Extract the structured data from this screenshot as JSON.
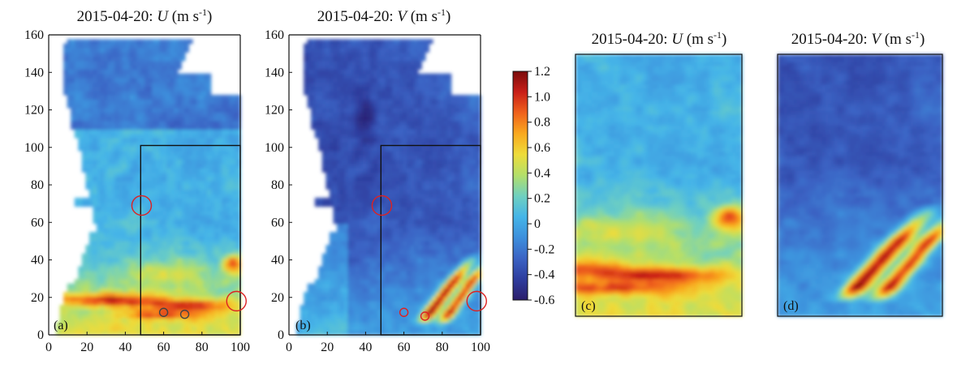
{
  "chart_data": [
    {
      "type": "heatmap",
      "panel_label": "(a)",
      "title": "2015-04-20: U (m s⁻¹)",
      "title_date": "2015-04-20: ",
      "title_var": "U",
      "title_unit": " (m s",
      "title_exp": "-1",
      "title_close": ")",
      "xlim": [
        0,
        100
      ],
      "ylim": [
        0,
        160
      ],
      "xticks": [
        "0",
        "20",
        "40",
        "60",
        "80",
        "100"
      ],
      "yticks": [
        "0",
        "20",
        "40",
        "60",
        "80",
        "100",
        "120",
        "140",
        "160"
      ],
      "subregion_box": {
        "x": [
          48,
          100
        ],
        "y": [
          0,
          101
        ]
      },
      "markers": [
        {
          "type": "circle",
          "x": 48.5,
          "y": 69,
          "color": "#d22"
        },
        {
          "type": "circle",
          "x": 98,
          "y": 18,
          "color": "#d22"
        },
        {
          "type": "circle",
          "x": 60,
          "y": 12,
          "color": "#444"
        },
        {
          "type": "circle",
          "x": 71,
          "y": 11,
          "color": "#444"
        }
      ]
    },
    {
      "type": "heatmap",
      "panel_label": "(b)",
      "title": "2015-04-20: V (m s⁻¹)",
      "title_date": "2015-04-20: ",
      "title_var": "V",
      "title_unit": " (m s",
      "title_exp": "-1",
      "title_close": ")",
      "xlim": [
        0,
        100
      ],
      "ylim": [
        0,
        160
      ],
      "xticks": [
        "0",
        "20",
        "40",
        "60",
        "80",
        "100"
      ],
      "yticks": [
        "0",
        "20",
        "40",
        "60",
        "80",
        "100",
        "120",
        "140",
        "160"
      ],
      "subregion_box": {
        "x": [
          48,
          100
        ],
        "y": [
          0,
          101
        ]
      },
      "markers": [
        {
          "type": "circle",
          "x": 48.5,
          "y": 69,
          "color": "#d22"
        },
        {
          "type": "circle",
          "x": 98,
          "y": 18,
          "color": "#d22"
        },
        {
          "type": "circle",
          "x": 60,
          "y": 12,
          "color": "#d22"
        },
        {
          "type": "circle",
          "x": 71,
          "y": 10,
          "color": "#d22"
        }
      ]
    },
    {
      "type": "heatmap",
      "panel_label": "(c)",
      "title": "2015-04-20: U (m s⁻¹)",
      "title_date": "2015-04-20: ",
      "title_var": "U",
      "title_unit": " (m s",
      "title_exp": "-1",
      "title_close": ")"
    },
    {
      "type": "heatmap",
      "panel_label": "(d)",
      "title": "2015-04-20: V (m s⁻¹)",
      "title_date": "2015-04-20: ",
      "title_var": "V",
      "title_unit": " (m s",
      "title_exp": "-1",
      "title_close": ")"
    }
  ],
  "colorbar": {
    "range": [
      -0.6,
      1.2
    ],
    "ticks": [
      "1.2",
      "1.0",
      "0.8",
      "0.6",
      "0.4",
      "0.2",
      "0",
      "-0.2",
      "-0.4",
      "-0.6"
    ],
    "tick_values": [
      1.2,
      1.0,
      0.8,
      0.6,
      0.4,
      0.2,
      0,
      -0.2,
      -0.4,
      -0.6
    ],
    "colormap": [
      "#2b1d6b",
      "#2e3d9e",
      "#3b63c4",
      "#3d8fdc",
      "#45b5e8",
      "#6fd0c0",
      "#b3df6a",
      "#eedc3a",
      "#f9a91f",
      "#f0621c",
      "#c91f18",
      "#7a0b0b"
    ]
  },
  "colors": {
    "axis": "#111111",
    "marker_red": "#d22222",
    "marker_grey": "#444444"
  }
}
